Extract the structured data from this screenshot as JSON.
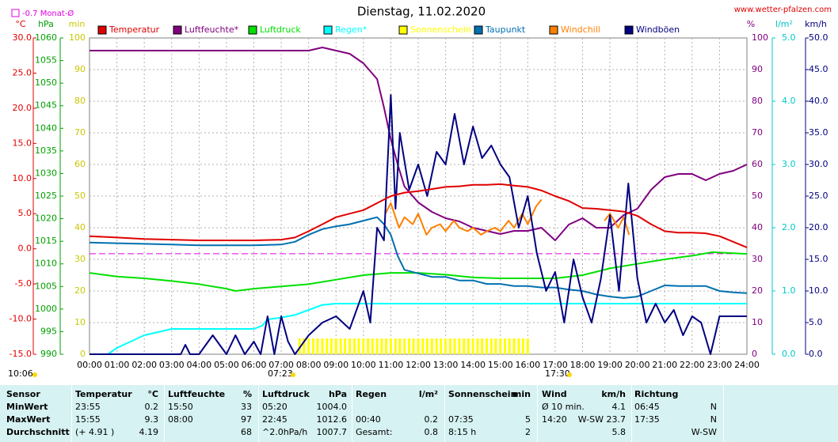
{
  "chart_data": {
    "type": "line",
    "title": "Dienstag, 11.02.2020",
    "source": "www.wetter-pfalzen.com",
    "updated": "10:06",
    "sunrise": "07:23",
    "sunset": "17:30",
    "month_avg": {
      "label": "-0.7 Monat-Ø",
      "value": -0.7,
      "axis": "temp",
      "color": "#e000e0"
    },
    "grid": true,
    "xlim": [
      0,
      24
    ],
    "xticks": [
      {
        "value": 0,
        "label": "00:00"
      },
      {
        "value": 1,
        "label": "01:00"
      },
      {
        "value": 2,
        "label": "02:00"
      },
      {
        "value": 3,
        "label": "03:00"
      },
      {
        "value": 4,
        "label": "04:00"
      },
      {
        "value": 5,
        "label": "05:00"
      },
      {
        "value": 6,
        "label": "06:00"
      },
      {
        "value": 7,
        "label": "07:00"
      },
      {
        "value": 8,
        "label": "08:00"
      },
      {
        "value": 9,
        "label": "09:00"
      },
      {
        "value": 10,
        "label": "10:00"
      },
      {
        "value": 11,
        "label": "11:00"
      },
      {
        "value": 12,
        "label": "12:00"
      },
      {
        "value": 13,
        "label": "13:00"
      },
      {
        "value": 14,
        "label": "14:00"
      },
      {
        "value": 15,
        "label": "15:00"
      },
      {
        "value": 16,
        "label": "16:00"
      },
      {
        "value": 17,
        "label": "17:00"
      },
      {
        "value": 18,
        "label": "18:00"
      },
      {
        "value": 19,
        "label": "19:00"
      },
      {
        "value": 20,
        "label": "20:00"
      },
      {
        "value": 21,
        "label": "21:00"
      },
      {
        "value": 22,
        "label": "22:00"
      },
      {
        "value": 23,
        "label": "23:00"
      },
      {
        "value": 24,
        "label": "24:00"
      }
    ],
    "axes": {
      "temp": {
        "unit": "°C",
        "color": "#e00000",
        "ylim": [
          -15,
          30
        ],
        "yticks": [
          {
            "value": -15,
            "label": "-15.0"
          },
          {
            "value": -10,
            "label": "-10.0"
          },
          {
            "value": -5,
            "label": "-5.0"
          },
          {
            "value": 0,
            "label": "0.0"
          },
          {
            "value": 5,
            "label": "5.0"
          },
          {
            "value": 10,
            "label": "10.0"
          },
          {
            "value": 15,
            "label": "15.0"
          },
          {
            "value": 20,
            "label": "20.0"
          },
          {
            "value": 25,
            "label": "25.0"
          },
          {
            "value": 30,
            "label": "30.0"
          }
        ]
      },
      "hpa": {
        "unit": "hPa",
        "color": "#00a000",
        "ylim": [
          990,
          1060
        ],
        "yticks": [
          990,
          995,
          1000,
          1005,
          1010,
          1015,
          1020,
          1025,
          1030,
          1035,
          1040,
          1045,
          1050,
          1055,
          1060
        ]
      },
      "min": {
        "unit": "min",
        "color": "#c8c800",
        "ylim": [
          0,
          100
        ],
        "yticks": [
          0,
          10,
          20,
          30,
          40,
          50,
          60,
          70,
          80,
          90,
          100
        ]
      },
      "pct": {
        "unit": "%",
        "color": "#800080",
        "ylim": [
          0,
          100
        ],
        "yticks": [
          0,
          10,
          20,
          30,
          40,
          50,
          60,
          70,
          80,
          90,
          100
        ]
      },
      "rain": {
        "unit": "l/m²",
        "color": "#00c8c8",
        "ylim": [
          0,
          5
        ],
        "yticks": [
          {
            "value": 0,
            "label": "0.0"
          },
          {
            "value": 1,
            "label": "1.0"
          },
          {
            "value": 2,
            "label": "2.0"
          },
          {
            "value": 3,
            "label": "3.0"
          },
          {
            "value": 4,
            "label": "4.0"
          },
          {
            "value": 5,
            "label": "5.0"
          }
        ]
      },
      "wind": {
        "unit": "km/h",
        "color": "#000080",
        "ylim": [
          0,
          50
        ],
        "yticks": [
          {
            "value": 0,
            "label": "0.0"
          },
          {
            "value": 5,
            "label": "5.0"
          },
          {
            "value": 10,
            "label": "10.0"
          },
          {
            "value": 15,
            "label": "15.0"
          },
          {
            "value": 20,
            "label": "20.0"
          },
          {
            "value": 25,
            "label": "25.0"
          },
          {
            "value": 30,
            "label": "30.0"
          },
          {
            "value": 35,
            "label": "35.0"
          },
          {
            "value": 40,
            "label": "40.0"
          },
          {
            "value": 45,
            "label": "45.0"
          },
          {
            "value": 50,
            "label": "50.0"
          }
        ]
      }
    },
    "series": [
      {
        "name": "Temperatur",
        "color": "#e00000",
        "type": "line",
        "axis": "temp",
        "x": [
          0,
          1,
          2,
          3,
          4,
          5,
          6,
          7,
          7.5,
          8,
          8.5,
          9,
          9.5,
          10,
          10.5,
          11,
          11.5,
          12,
          12.5,
          13,
          13.5,
          14,
          14.5,
          15,
          15.5,
          16,
          16.5,
          17,
          17.5,
          18,
          18.5,
          19,
          19.5,
          20,
          20.5,
          21,
          21.5,
          22,
          22.5,
          23,
          23.5,
          24
        ],
        "values": [
          1.8,
          1.6,
          1.4,
          1.3,
          1.2,
          1.2,
          1.2,
          1.3,
          1.6,
          2.5,
          3.5,
          4.5,
          5,
          5.5,
          6.5,
          7.5,
          8,
          8.2,
          8.5,
          8.8,
          8.9,
          9.1,
          9.1,
          9.2,
          9,
          8.8,
          8.3,
          7.5,
          6.8,
          5.8,
          5.7,
          5.5,
          5.3,
          4.7,
          3.5,
          2.5,
          2.3,
          2.3,
          2.2,
          1.8,
          1,
          0.2
        ]
      },
      {
        "name": "Luftfeuchte*",
        "color": "#800080",
        "type": "line",
        "axis": "pct",
        "x": [
          0,
          2,
          4,
          6,
          7,
          8,
          8.5,
          9,
          9.5,
          10,
          10.5,
          10.75,
          11,
          11.25,
          11.5,
          12,
          12.5,
          13,
          13.5,
          14,
          14.5,
          15,
          15.5,
          16,
          16.5,
          17,
          17.5,
          18,
          18.5,
          19,
          19.5,
          20,
          20.5,
          21,
          21.5,
          22,
          22.5,
          23,
          23.5,
          24
        ],
        "values": [
          96,
          96,
          96,
          96,
          96,
          96,
          97,
          96,
          95,
          92,
          87,
          78,
          68,
          60,
          53,
          48,
          45,
          43,
          42,
          40,
          39,
          38,
          39,
          39,
          40,
          36,
          41,
          43,
          40,
          40,
          44,
          46,
          52,
          56,
          57,
          57,
          55,
          57,
          58,
          60
        ]
      },
      {
        "name": "Luftdruck",
        "color": "#00e000",
        "type": "line",
        "axis": "hpa",
        "x": [
          0,
          1,
          2,
          3,
          4,
          5,
          5.33,
          6,
          7,
          8,
          9,
          10,
          11,
          12,
          13,
          14,
          15,
          16,
          17,
          18,
          19,
          20,
          21,
          22,
          22.75,
          23,
          24
        ],
        "values": [
          1008,
          1007.2,
          1006.8,
          1006.2,
          1005.5,
          1004.5,
          1004,
          1004.5,
          1005,
          1005.5,
          1006.5,
          1007.5,
          1008,
          1008,
          1007.6,
          1007,
          1006.8,
          1006.8,
          1006.8,
          1007.5,
          1009,
          1010,
          1011,
          1011.8,
          1012.6,
          1012.5,
          1012.2
        ]
      },
      {
        "name": "Regen*",
        "color": "#00ffff",
        "type": "line",
        "axis": "rain",
        "x": [
          0,
          0.67,
          1,
          1.5,
          2,
          2.5,
          3,
          4,
          5,
          6,
          6.3,
          6.5,
          7,
          7.5,
          8,
          8.5,
          9,
          10,
          12,
          16,
          20,
          24
        ],
        "values": [
          0,
          0,
          0.1,
          0.2,
          0.3,
          0.35,
          0.4,
          0.4,
          0.4,
          0.4,
          0.45,
          0.55,
          0.58,
          0.62,
          0.7,
          0.78,
          0.8,
          0.8,
          0.8,
          0.8,
          0.8,
          0.8
        ]
      },
      {
        "name": "Sonnenschein",
        "color": "#ffff00",
        "type": "bar",
        "axis": "min",
        "x": [
          7.67,
          7.83,
          8,
          8.17,
          8.33,
          8.5,
          8.67,
          8.83,
          9,
          9.17,
          9.33,
          9.5,
          9.67,
          9.83,
          10,
          10.17,
          10.33,
          10.5,
          10.67,
          10.83,
          11,
          11.17,
          11.33,
          11.5,
          11.67,
          11.83,
          12,
          12.17,
          12.33,
          12.5,
          12.67,
          12.83,
          13,
          13.17,
          13.33,
          13.5,
          13.67,
          13.83,
          14,
          14.17,
          14.33,
          14.5,
          14.67,
          14.83,
          15,
          15.17,
          15.33,
          15.5,
          15.67,
          15.83,
          16
        ],
        "values": [
          5,
          5,
          5,
          5,
          5,
          5,
          5,
          5,
          5,
          5,
          5,
          5,
          5,
          5,
          5,
          5,
          5,
          5,
          5,
          5,
          5,
          5,
          5,
          5,
          5,
          5,
          5,
          5,
          5,
          5,
          5,
          5,
          5,
          5,
          5,
          5,
          5,
          5,
          5,
          5,
          5,
          5,
          5,
          5,
          5,
          5,
          5,
          5,
          5,
          5,
          5
        ]
      },
      {
        "name": "Taupunkt",
        "color": "#0070b0",
        "type": "line",
        "axis": "temp",
        "x": [
          0,
          1,
          2,
          3,
          4,
          5,
          6,
          7,
          7.5,
          8,
          8.5,
          9,
          9.5,
          10,
          10.5,
          10.75,
          11,
          11.25,
          11.5,
          12,
          12.5,
          13,
          13.5,
          14,
          14.5,
          15,
          15.5,
          16,
          16.5,
          17,
          17.5,
          18,
          18.5,
          19,
          19.5,
          20,
          20.5,
          21,
          21.5,
          22,
          22.5,
          23,
          23.5,
          24
        ],
        "values": [
          0.9,
          0.8,
          0.7,
          0.6,
          0.5,
          0.5,
          0.5,
          0.6,
          1,
          2,
          2.8,
          3.2,
          3.5,
          4,
          4.5,
          3.5,
          2,
          -1,
          -3,
          -3.5,
          -4,
          -4,
          -4.5,
          -4.5,
          -5,
          -5,
          -5.3,
          -5.3,
          -5.5,
          -5.5,
          -5.8,
          -6,
          -6.5,
          -6.8,
          -7,
          -6.8,
          -6,
          -5.2,
          -5.3,
          -5.3,
          -5.3,
          -6,
          -6.2,
          -6.3
        ]
      },
      {
        "name": "Windchill",
        "color": "#ff8000",
        "type": "line",
        "axis": "temp",
        "x": [
          10.8,
          11,
          11.3,
          11.5,
          11.8,
          12,
          12.3,
          12.5,
          12.8,
          13,
          13.3,
          13.5,
          13.8,
          14,
          14.3,
          14.5,
          14.8,
          15,
          15.3,
          15.5,
          15.8,
          16,
          16.3,
          16.5,
          17.5,
          18.8,
          19,
          19.3,
          19.5,
          19.7
        ],
        "values": [
          5,
          6.5,
          3,
          4.5,
          3.5,
          5,
          2,
          3,
          3.5,
          2.5,
          4,
          3,
          2.5,
          3,
          2,
          2.5,
          3,
          2.5,
          4,
          3,
          5,
          3.5,
          6,
          7,
          null,
          4,
          5,
          3,
          4.5,
          2
        ]
      },
      {
        "name": "Windböen",
        "color": "#000080",
        "type": "line",
        "axis": "wind",
        "x": [
          0,
          3.33,
          3.5,
          3.67,
          4,
          4.5,
          5,
          5.33,
          5.67,
          6,
          6.25,
          6.5,
          6.75,
          7,
          7.25,
          7.5,
          8,
          8.5,
          9,
          9.5,
          10,
          10.25,
          10.5,
          10.75,
          11,
          11.17,
          11.33,
          11.67,
          12,
          12.33,
          12.67,
          13,
          13.33,
          13.67,
          14,
          14.33,
          14.67,
          15,
          15.33,
          15.67,
          16,
          16.33,
          16.67,
          17,
          17.33,
          17.67,
          18,
          18.33,
          18.67,
          19,
          19.33,
          19.67,
          20,
          20.33,
          20.67,
          21,
          21.33,
          21.67,
          22,
          22.33,
          22.67,
          23,
          23.33,
          24
        ],
        "values": [
          0,
          0,
          1.5,
          0,
          0,
          3,
          0,
          3,
          0,
          2,
          0,
          6,
          0,
          6,
          2,
          0,
          3,
          5,
          6,
          4,
          10,
          5,
          20,
          18,
          41,
          23,
          35,
          26,
          30,
          25,
          32,
          30,
          38,
          30,
          36,
          31,
          33,
          30,
          28,
          20,
          25,
          16,
          10,
          13,
          5,
          15,
          9,
          5,
          12,
          22,
          10,
          27,
          12,
          5,
          8,
          5,
          7,
          3,
          6,
          5,
          0,
          6,
          6,
          6
        ]
      }
    ]
  },
  "table": {
    "header": {
      "label": "Sensor",
      "cells": [
        [
          "Temperatur",
          "°C"
        ],
        [
          "Luftfeuchte",
          "%"
        ],
        [
          "Luftdruck",
          "hPa"
        ],
        [
          "Regen",
          "l/m²"
        ],
        [
          "Sonnenschein",
          "min"
        ],
        [
          "Wind",
          "km/h"
        ],
        [
          "Richtung",
          null
        ]
      ]
    },
    "rows": [
      {
        "label": "MinWert",
        "cells": [
          [
            "23:55",
            "0.2"
          ],
          [
            "15:50",
            "33"
          ],
          [
            "05:20",
            "1004.0"
          ],
          [
            null,
            null
          ],
          [
            null,
            null
          ],
          [
            "Ø 10 min.",
            "4.1"
          ],
          [
            "06:45",
            "N"
          ]
        ]
      },
      {
        "label": "MaxWert",
        "cells": [
          [
            "15:55",
            "9.3"
          ],
          [
            "08:00",
            "97"
          ],
          [
            "22:45",
            "1012.6"
          ],
          [
            "00:40",
            "0.2"
          ],
          [
            "07:35",
            "5"
          ],
          [
            "14:20",
            "W-SW 23.7"
          ],
          [
            "17:35",
            "N"
          ]
        ]
      },
      {
        "label": "Durchschnitt",
        "cells": [
          [
            "(+ 4.91 )",
            "4.19"
          ],
          [
            null,
            "68"
          ],
          [
            "^2.0hPa/h",
            "1007.7"
          ],
          [
            "Gesamt:",
            "0.8"
          ],
          [
            "8:15 h",
            "2"
          ],
          [
            null,
            "5.8"
          ],
          [
            null,
            "W-SW"
          ]
        ]
      }
    ]
  }
}
